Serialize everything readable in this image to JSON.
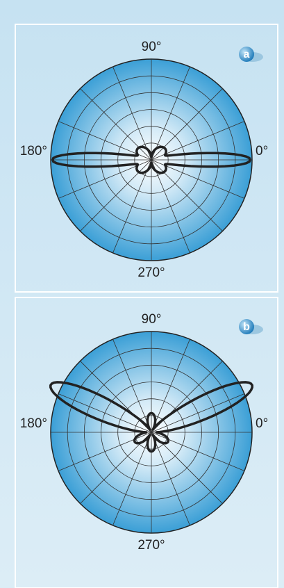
{
  "panels": [
    {
      "badge": "a",
      "top": "90°",
      "left": "180°",
      "right": "0°",
      "bottom": "270°"
    },
    {
      "badge": "b",
      "top": "90°",
      "left": "180°",
      "right": "0°",
      "bottom": "270°"
    }
  ]
}
